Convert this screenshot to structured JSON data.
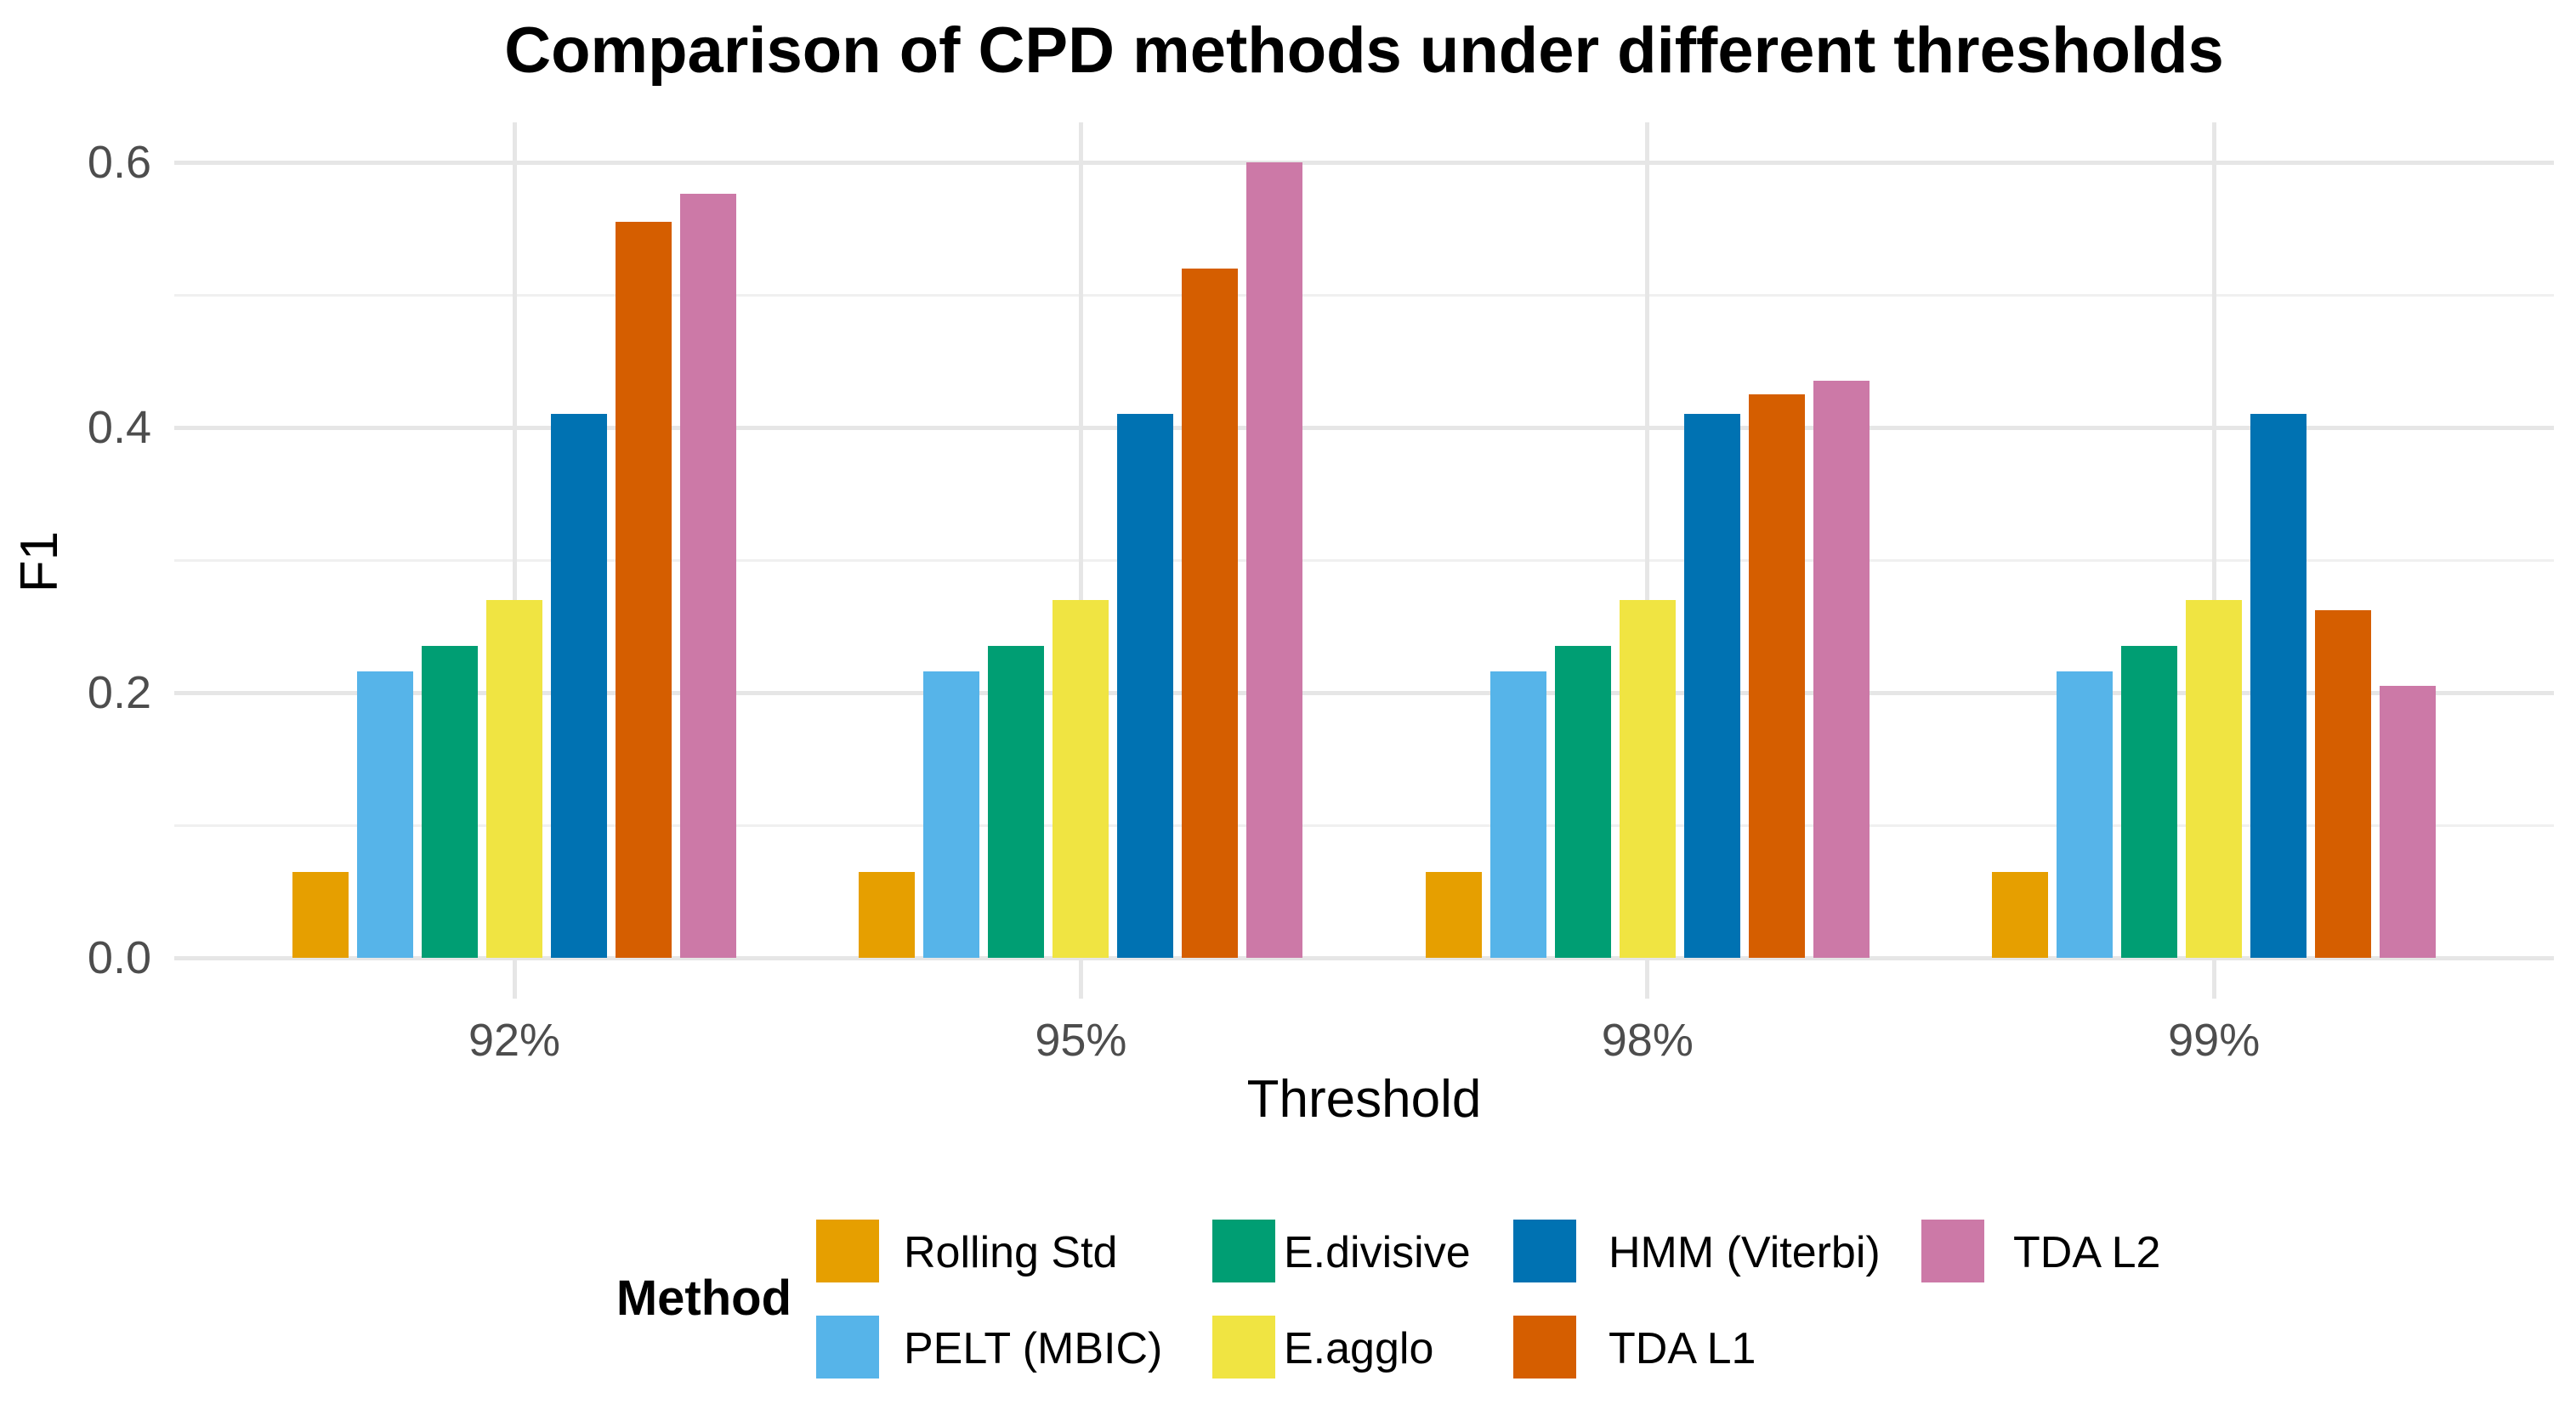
{
  "chart_data": {
    "type": "bar",
    "title": "Comparison of CPD methods under different thresholds",
    "xlabel": "Threshold",
    "ylabel": "F1",
    "categories": [
      "92%",
      "95%",
      "98%",
      "99%"
    ],
    "series": [
      {
        "name": "Rolling Std",
        "color": "#E69F00",
        "values": [
          0.065,
          0.065,
          0.065,
          0.065
        ]
      },
      {
        "name": "PELT (MBIC)",
        "color": "#56B4E9",
        "values": [
          0.216,
          0.216,
          0.216,
          0.216
        ]
      },
      {
        "name": "E.divisive",
        "color": "#009E73",
        "values": [
          0.235,
          0.235,
          0.235,
          0.235
        ]
      },
      {
        "name": "E.agglo",
        "color": "#F0E442",
        "values": [
          0.27,
          0.27,
          0.27,
          0.27
        ]
      },
      {
        "name": "HMM (Viterbi)",
        "color": "#0072B2",
        "values": [
          0.41,
          0.41,
          0.41,
          0.41
        ]
      },
      {
        "name": "TDA L1",
        "color": "#D55E00",
        "values": [
          0.555,
          0.52,
          0.425,
          0.262
        ]
      },
      {
        "name": "TDA L2",
        "color": "#CC79A7",
        "values": [
          0.576,
          0.6,
          0.435,
          0.205
        ]
      }
    ],
    "ylim": [
      0,
      0.63
    ],
    "yticks": [
      {
        "value": 0.0,
        "label": "0.0"
      },
      {
        "value": 0.2,
        "label": "0.2"
      },
      {
        "value": 0.4,
        "label": "0.4"
      },
      {
        "value": 0.6,
        "label": "0.6"
      }
    ],
    "minor_gridlines": [
      0.1,
      0.3,
      0.5
    ],
    "grid": true,
    "legend_title": "Method",
    "legend_position": "bottom"
  }
}
